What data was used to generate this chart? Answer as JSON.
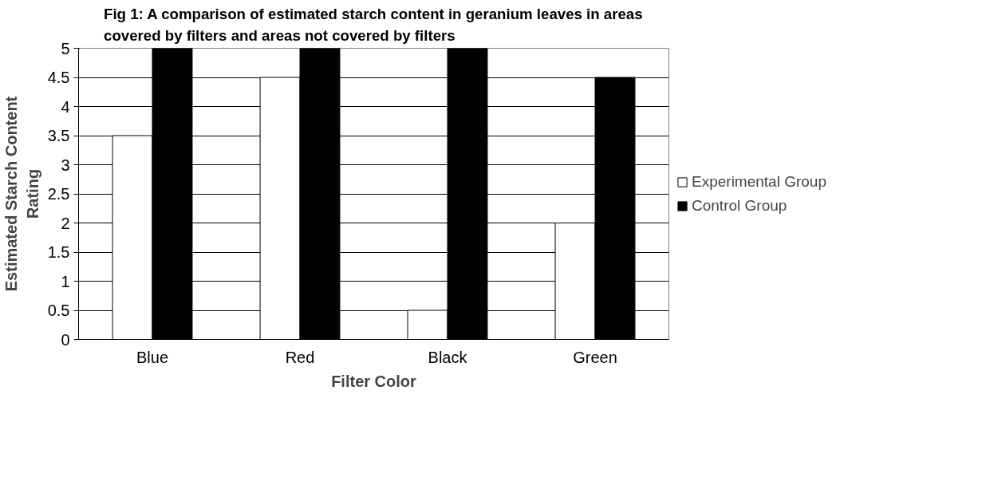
{
  "chart_data": {
    "type": "bar",
    "title": "Fig 1: A comparison of estimated starch content in geranium leaves in areas covered by filters and areas not covered by filters",
    "xlabel": "Filter Color",
    "ylabel": "Estimated Starch Content Rating",
    "categories": [
      "Blue",
      "Red",
      "Black",
      "Green"
    ],
    "series": [
      {
        "name": "Experimental Group",
        "color": "#ffffff",
        "values": [
          3.5,
          4.5,
          0.5,
          2
        ]
      },
      {
        "name": "Control Group",
        "color": "#000000",
        "values": [
          5,
          5,
          5,
          4.5
        ]
      }
    ],
    "ylim": [
      0,
      5
    ],
    "yticks": [
      0,
      0.5,
      1,
      1.5,
      2,
      2.5,
      3,
      3.5,
      4,
      4.5,
      5
    ],
    "grid": "y",
    "legend": "right"
  }
}
